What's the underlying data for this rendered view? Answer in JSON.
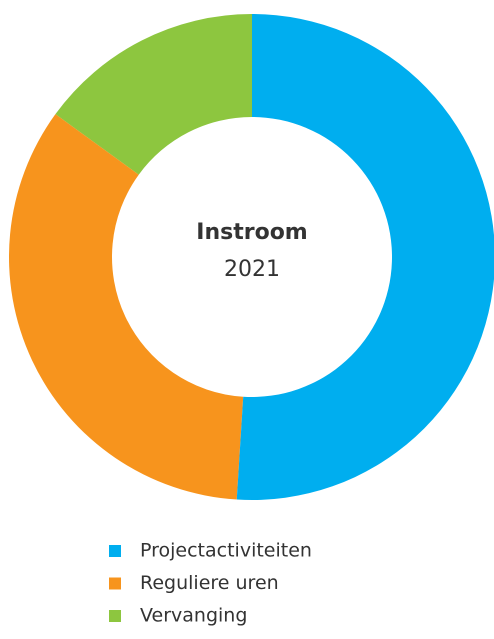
{
  "chart_data": {
    "type": "donut",
    "title": "Instroom",
    "subtitle": "2021",
    "categories": [
      "Projectactiviteiten",
      "Reguliere uren",
      "Vervanging"
    ],
    "values": [
      51,
      34,
      15
    ],
    "colors": [
      "#00aeef",
      "#f7941d",
      "#8dc63f"
    ],
    "legend": "bottom"
  }
}
